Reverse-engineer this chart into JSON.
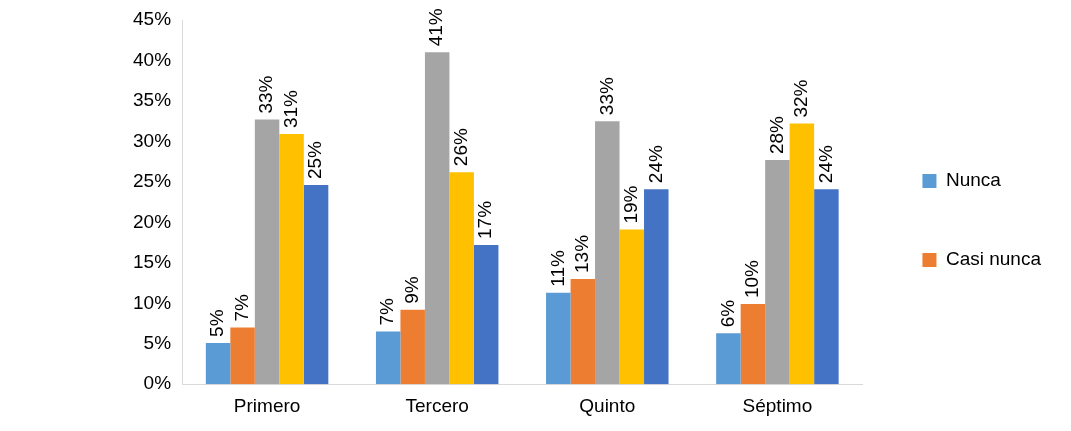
{
  "chart_data": {
    "type": "bar",
    "categories": [
      "Primero",
      "Tercero",
      "Quinto",
      "Séptimo"
    ],
    "series": [
      {
        "name": "Nunca",
        "color": "#5b9bd5",
        "values": [
          5.1,
          6.5,
          11.3,
          6.3
        ],
        "value_labels": [
          "5%",
          "7%",
          "11%",
          "6%"
        ]
      },
      {
        "name": "Casi nunca",
        "color": "#ed7d31",
        "values": [
          7.0,
          9.2,
          13.0,
          9.9
        ],
        "value_labels": [
          "7%",
          "9%",
          "13%",
          "10%"
        ]
      },
      {
        "color": "#a5a5a5",
        "values": [
          32.7,
          41.0,
          32.5,
          27.7
        ],
        "value_labels": [
          "33%",
          "41%",
          "33%",
          "28%"
        ]
      },
      {
        "color": "#ffc000",
        "values": [
          30.9,
          26.2,
          19.1,
          32.2
        ],
        "value_labels": [
          "31%",
          "26%",
          "19%",
          "32%"
        ]
      },
      {
        "color": "#4472c4",
        "values": [
          24.6,
          17.2,
          24.1,
          24.1
        ],
        "value_labels": [
          "25%",
          "17%",
          "24%",
          "24%"
        ]
      }
    ],
    "ylim": [
      0,
      45
    ],
    "yticks": [
      {
        "value": 0,
        "label": "0%"
      },
      {
        "value": 5,
        "label": "5%"
      },
      {
        "value": 10,
        "label": "10%"
      },
      {
        "value": 15,
        "label": "15%"
      },
      {
        "value": 20,
        "label": "20%"
      },
      {
        "value": 25,
        "label": "25%"
      },
      {
        "value": 30,
        "label": "30%"
      },
      {
        "value": 35,
        "label": "35%"
      },
      {
        "value": 40,
        "label": "40%"
      },
      {
        "value": 45,
        "label": "45%"
      }
    ],
    "grid": false,
    "legend": "right"
  }
}
